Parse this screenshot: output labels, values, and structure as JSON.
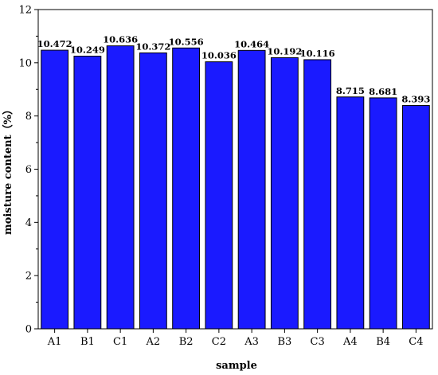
{
  "chart_data": {
    "type": "bar",
    "categories": [
      "A1",
      "B1",
      "C1",
      "A2",
      "B2",
      "C2",
      "A3",
      "B3",
      "C3",
      "A4",
      "B4",
      "C4"
    ],
    "values": [
      10.472,
      10.249,
      10.636,
      10.372,
      10.556,
      10.036,
      10.464,
      10.192,
      10.116,
      8.715,
      8.681,
      8.393
    ],
    "data_labels": [
      "10.472",
      "10.249",
      "10.636",
      "10.372",
      "10.556",
      "10.036",
      "10.464",
      "10.192",
      "10.116",
      "8.715",
      "8.681",
      "8.393"
    ],
    "title": "",
    "xlabel": "sample",
    "ylabel": "moisture content（%）",
    "ylim": [
      0,
      12
    ],
    "yticks": [
      0,
      2,
      4,
      6,
      8,
      10,
      12
    ],
    "bar_color": "#1a1aff",
    "bar_edge_color": "#000000",
    "grid": false,
    "legend": "none"
  }
}
